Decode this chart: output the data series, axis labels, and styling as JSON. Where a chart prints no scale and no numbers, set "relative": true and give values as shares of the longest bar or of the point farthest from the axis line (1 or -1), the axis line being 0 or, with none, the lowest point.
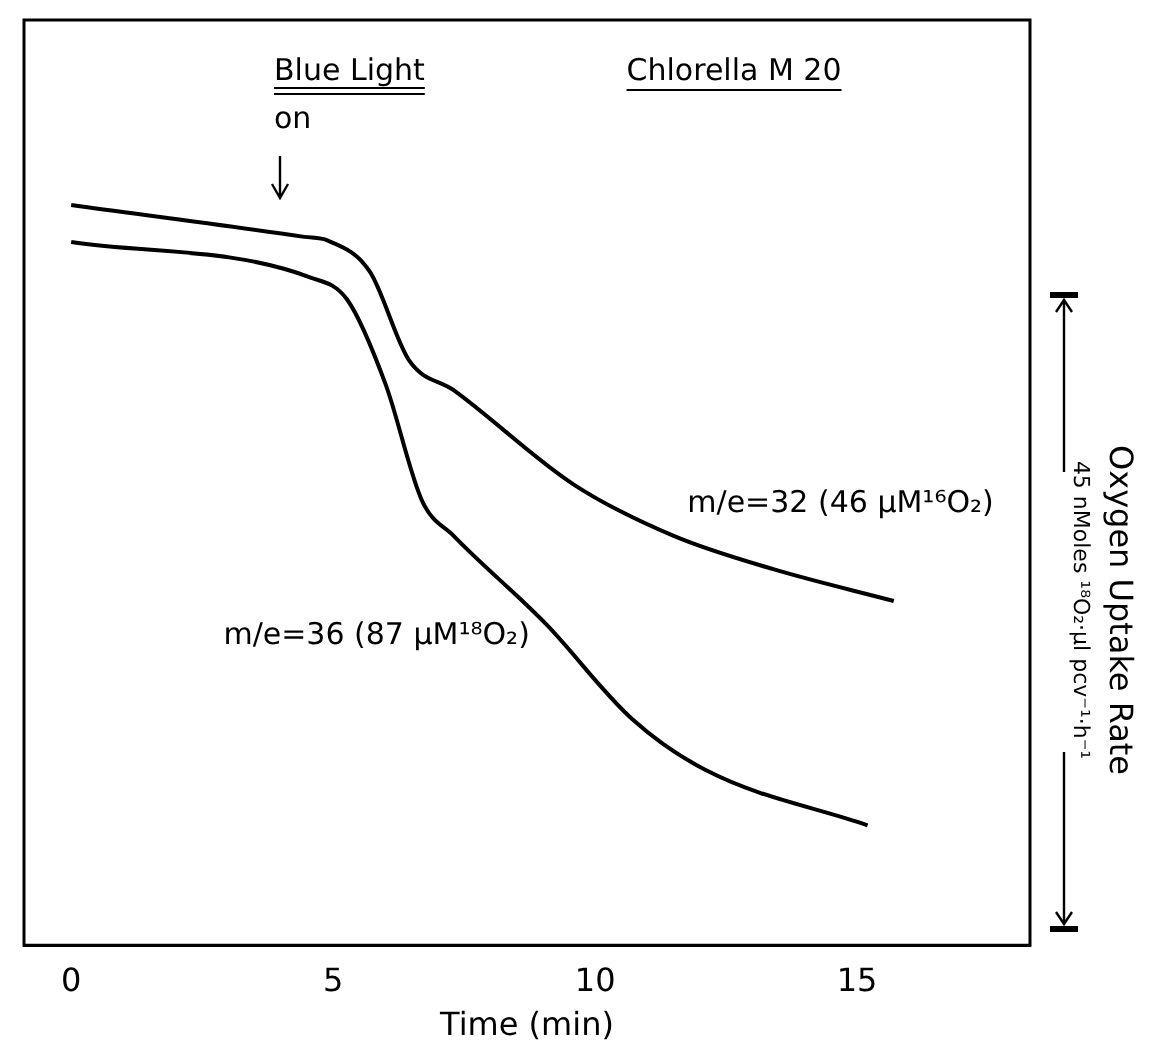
{
  "chart_data": {
    "type": "line",
    "relative": true,
    "xlabel": "Time (min)",
    "ylabel": "Oxygen Uptake Rate",
    "xlim": [
      -0.9,
      18.3
    ],
    "xticks": [
      0,
      5,
      10,
      15
    ],
    "grid": false,
    "legend": false,
    "marker": "none",
    "line_style": "solid",
    "annotations": [
      "Blue Light",
      "on",
      "Chlorella M 20",
      "45 nMoles ¹⁸O₂·µl pcv⁻¹·h⁻¹"
    ],
    "series": [
      {
        "name": "m/e=32 (46 µM¹⁶O₂)",
        "color": "#000000",
        "x": [
          0,
          4.45,
          4.9,
          5.7,
          6.45,
          7.3,
          9.6,
          11.5,
          13.4,
          15.7
        ],
        "values": [
          1.0,
          0.957,
          0.952,
          0.91,
          0.79,
          0.75,
          0.622,
          0.553,
          0.508,
          0.465
        ]
      },
      {
        "name": "m/e=36 (87 µM¹⁸O₂)",
        "color": "#000000",
        "x": [
          0,
          4.57,
          5.27,
          6.0,
          6.7,
          7.3,
          9.06,
          10.7,
          12.1,
          15.2
        ],
        "values": [
          0.95,
          0.902,
          0.872,
          0.758,
          0.6,
          0.553,
          0.434,
          0.306,
          0.237,
          0.162
        ]
      }
    ]
  }
}
